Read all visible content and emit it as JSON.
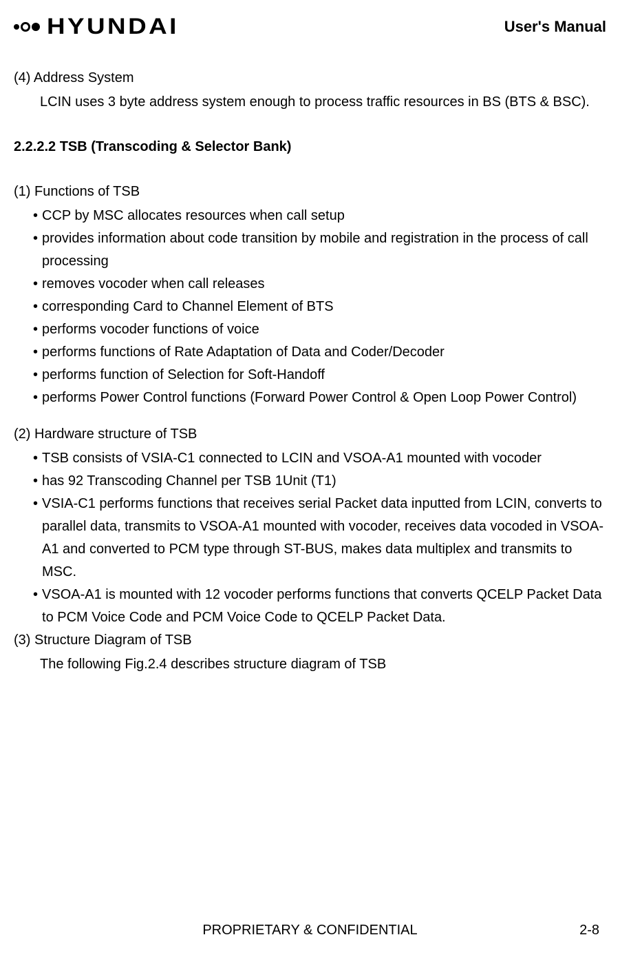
{
  "header": {
    "logo_text": "HYUNDAI",
    "title": "User's Manual"
  },
  "sections": {
    "s4": {
      "num": "(4) Address System",
      "body": "LCIN uses 3 byte address system enough to process traffic resources in BS (BTS & BSC)."
    },
    "heading": "2.2.2.2  TSB (Transcoding & Selector Bank)",
    "s1": {
      "num": "(1) Functions of TSB",
      "bullets": {
        "b1": "CCP by MSC allocates resources when call setup",
        "b2": "provides information about code transition by mobile and registration in the process of call processing",
        "b3": "removes vocoder when call releases",
        "b4": "corresponding Card to Channel Element of BTS",
        "b5": "performs vocoder functions of voice",
        "b6": "performs functions of Rate Adaptation of Data and Coder/Decoder",
        "b7": "performs function of Selection for Soft-Handoff",
        "b8": "performs Power Control functions (Forward Power Control & Open Loop Power Control)"
      }
    },
    "s2": {
      "num": "(2) Hardware structure of TSB",
      "bullets": {
        "b1": "TSB consists of VSIA-C1 connected to LCIN and VSOA-A1 mounted with vocoder",
        "b2": "has 92 Transcoding Channel per TSB 1Unit (T1)",
        "b3": "VSIA-C1 performs functions that receives serial Packet data inputted from LCIN, converts to parallel data, transmits to VSOA-A1 mounted with vocoder, receives data vocoded in VSOA-A1 and converted to PCM type through ST-BUS, makes data multiplex and transmits to MSC.",
        "b4": "VSOA-A1 is mounted with 12 vocoder performs functions that converts QCELP Packet Data to PCM Voice Code and PCM Voice Code to QCELP Packet Data."
      }
    },
    "s3": {
      "num": "(3) Structure Diagram of TSB",
      "body": "The following Fig.2.4 describes structure diagram of TSB"
    }
  },
  "footer": {
    "text": "PROPRIETARY & CONFIDENTIAL",
    "page": "2-8"
  },
  "styling": {
    "font_family": "Arial",
    "body_font_size": 20,
    "heading_font_weight": "bold",
    "text_color": "#000000",
    "background_color": "#ffffff",
    "line_height": 1.65
  }
}
